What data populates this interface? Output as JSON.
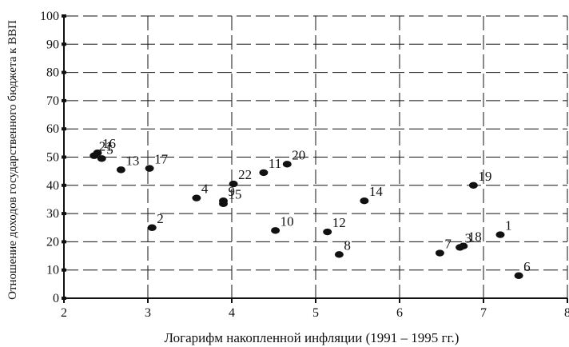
{
  "chart_data": {
    "type": "scatter",
    "title": "",
    "xlabel": "Логарифм накопленной инфляции (1991 – 1995 гг.)",
    "ylabel": "Отношение доходов государственного бюджета к ВВП",
    "xlim": [
      2,
      8
    ],
    "ylim": [
      0,
      100
    ],
    "x_ticks": [
      "2",
      "3",
      "4",
      "5",
      "6",
      "7",
      "8"
    ],
    "y_ticks": [
      "0",
      "10",
      "20",
      "30",
      "40",
      "50",
      "60",
      "70",
      "80",
      "90",
      "100"
    ],
    "grid": true,
    "grid_style": "dashed",
    "marker_color": "#111111",
    "points": [
      {
        "label": "1",
        "x": 7.2,
        "y": 22.5
      },
      {
        "label": "2",
        "x": 3.05,
        "y": 25
      },
      {
        "label": "3",
        "x": 6.72,
        "y": 18
      },
      {
        "label": "4",
        "x": 3.58,
        "y": 35.5
      },
      {
        "label": "5",
        "x": 2.45,
        "y": 49.5
      },
      {
        "label": "6",
        "x": 7.42,
        "y": 8
      },
      {
        "label": "7",
        "x": 6.48,
        "y": 16
      },
      {
        "label": "8",
        "x": 5.28,
        "y": 15.5
      },
      {
        "label": "9",
        "x": 3.9,
        "y": 34.5
      },
      {
        "label": "10",
        "x": 4.52,
        "y": 24
      },
      {
        "label": "11",
        "x": 4.38,
        "y": 44.5
      },
      {
        "label": "12",
        "x": 5.14,
        "y": 23.5
      },
      {
        "label": "13",
        "x": 2.68,
        "y": 45.5
      },
      {
        "label": "14",
        "x": 5.58,
        "y": 34.5
      },
      {
        "label": "15",
        "x": 3.9,
        "y": 33.5
      },
      {
        "label": "16",
        "x": 2.4,
        "y": 51.5
      },
      {
        "label": "17",
        "x": 3.02,
        "y": 46
      },
      {
        "label": "18",
        "x": 6.76,
        "y": 18.5
      },
      {
        "label": "19",
        "x": 6.88,
        "y": 40
      },
      {
        "label": "20",
        "x": 4.66,
        "y": 47.5
      },
      {
        "label": "21",
        "x": 2.36,
        "y": 50.5
      },
      {
        "label": "22",
        "x": 4.02,
        "y": 40.5
      }
    ]
  }
}
